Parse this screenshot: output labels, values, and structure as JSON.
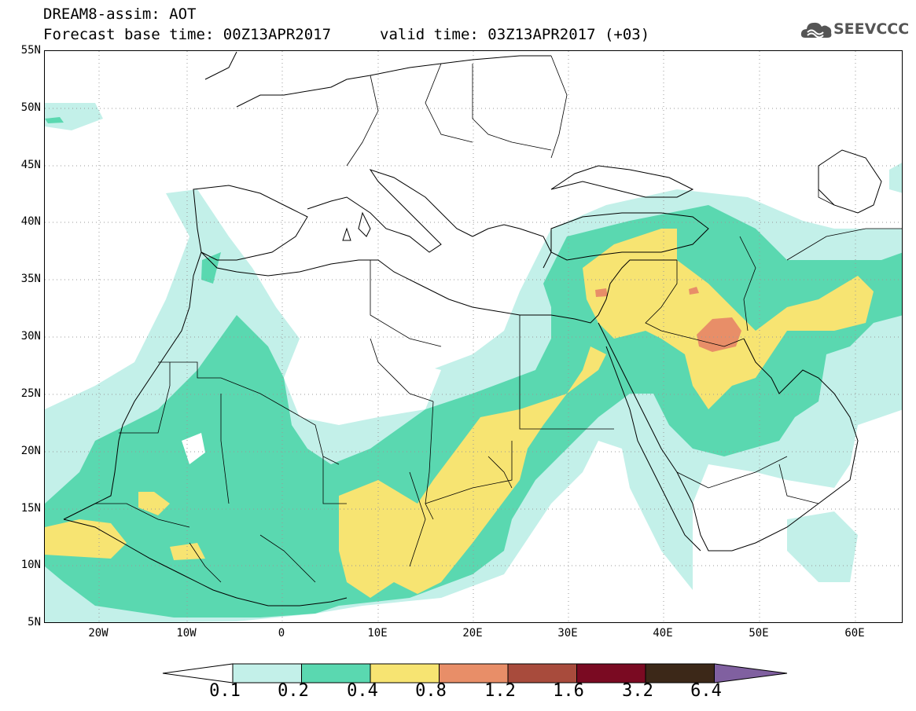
{
  "title": {
    "line1": "DREAM8-assim: AOT",
    "line2": "Forecast base time: 00Z13APR2017",
    "valid": "valid time: 03Z13APR2017 (+03)"
  },
  "logo": {
    "icon": "cloud-icon",
    "text": "SEEVCCC"
  },
  "map": {
    "region": "North Africa, Middle East and Europe",
    "lat_labels": [
      "55N",
      "50N",
      "45N",
      "40N",
      "35N",
      "30N",
      "25N",
      "20N",
      "15N",
      "10N",
      "5N"
    ],
    "lon_labels": [
      "20W",
      "10W",
      "0",
      "10E",
      "20E",
      "30E",
      "40E",
      "50E",
      "60E"
    ],
    "lon_range": [
      -25,
      65
    ],
    "lat_range": [
      5,
      55
    ],
    "grid": true
  },
  "legend": {
    "labels": [
      "0.1",
      "0.2",
      "0.4",
      "0.8",
      "1.2",
      "1.6",
      "3.2",
      "6.4"
    ],
    "colors": [
      "#ffffff",
      "#c3f0e9",
      "#5ad8b0",
      "#f7e472",
      "#e88e68",
      "#a84b3c",
      "#7a0a22",
      "#3c2818",
      "#8060a0"
    ]
  }
}
